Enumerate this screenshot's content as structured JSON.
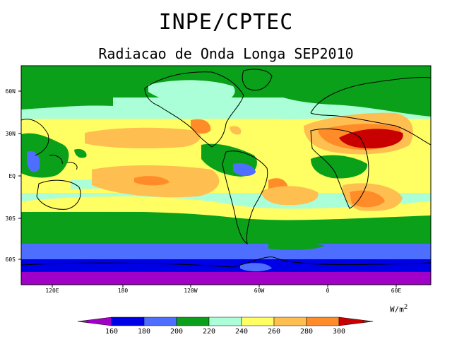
{
  "header": {
    "title": "INPE/CPTEC",
    "subtitle": "Radiacao de Onda Longa SEP2010"
  },
  "map": {
    "lat_ticks": [
      "60N",
      "30N",
      "EQ",
      "30S",
      "60S"
    ],
    "lon_ticks": [
      "120E",
      "180",
      "120W",
      "60W",
      "0",
      "60E"
    ]
  },
  "legend": {
    "units_base": "W/m",
    "units_exp": "2",
    "colors": [
      "#a000c8",
      "#0000e6",
      "#4e6eff",
      "#0aa01a",
      "#aaffd8",
      "#ffff64",
      "#ffbe50",
      "#ff8c28",
      "#c80000"
    ],
    "labels": [
      "160",
      "180",
      "200",
      "220",
      "240",
      "260",
      "280",
      "300"
    ]
  }
}
